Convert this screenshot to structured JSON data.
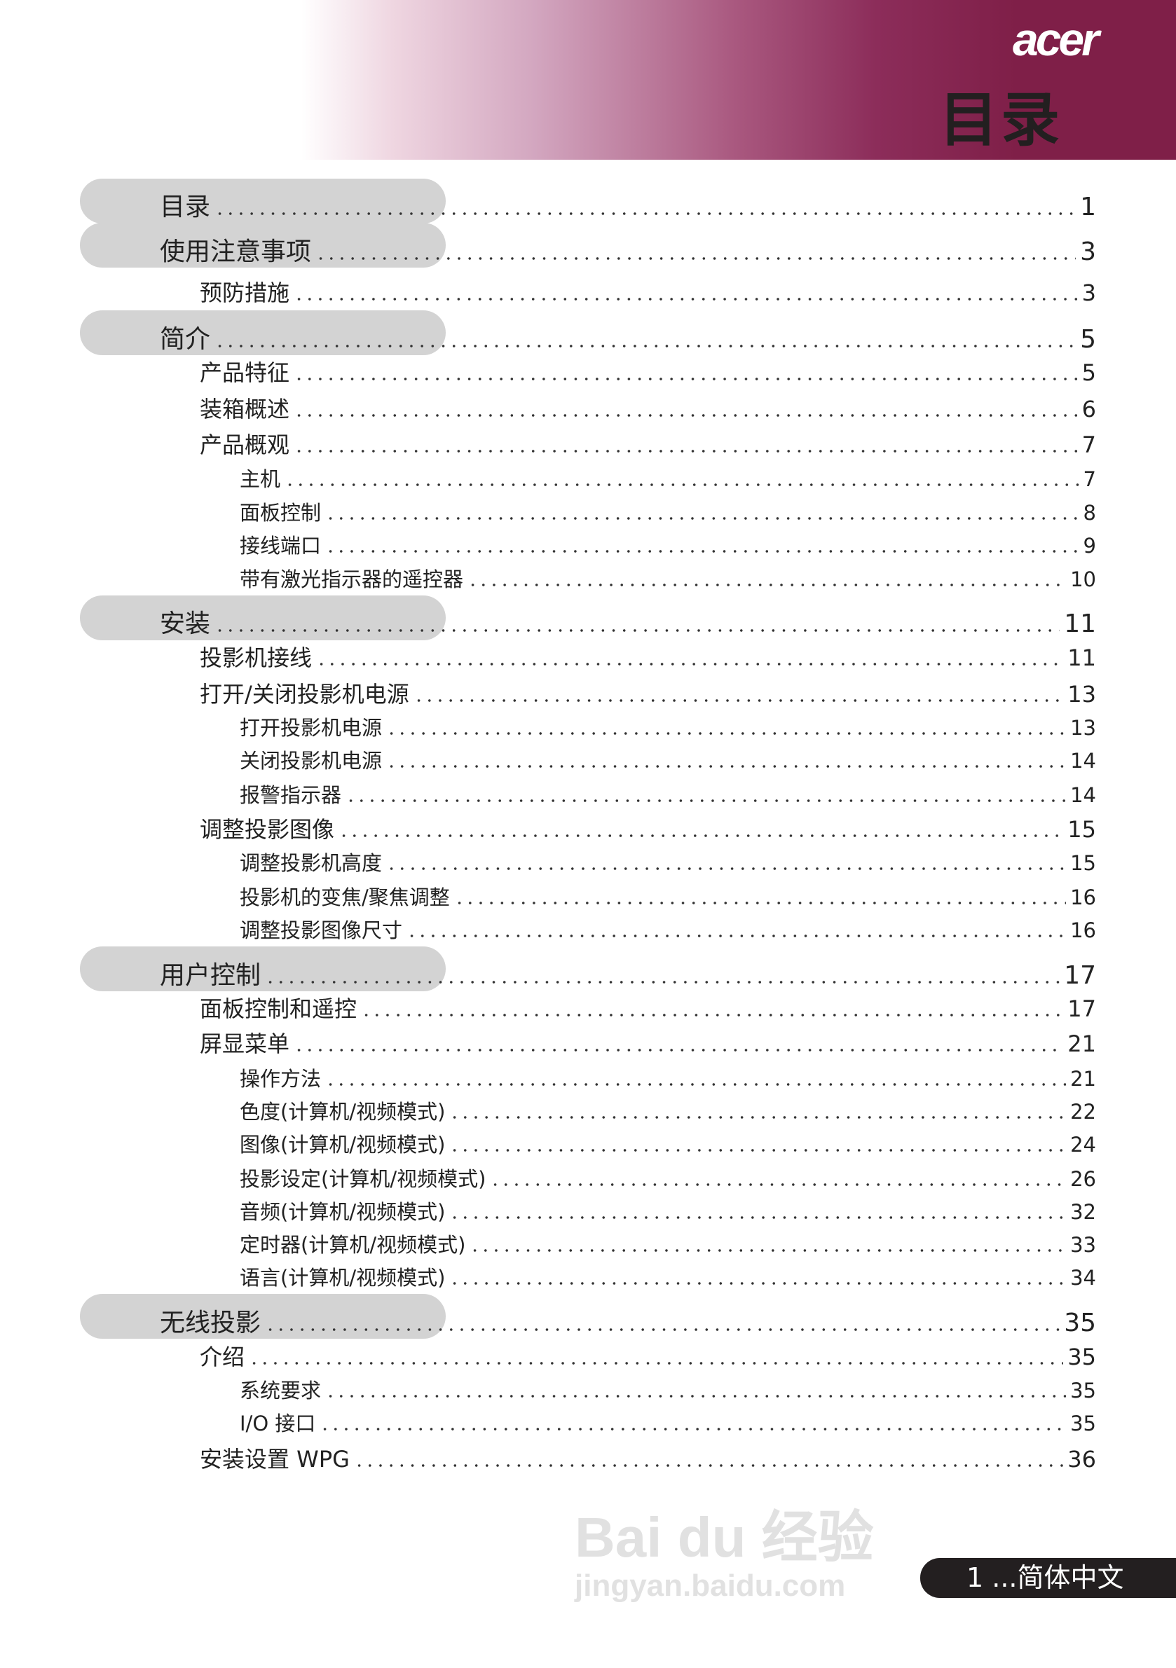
{
  "header": {
    "logo": "acer",
    "title": "目录",
    "gradient_color": "#7f1f48"
  },
  "toc": [
    {
      "level": 1,
      "label": "目录",
      "page": "1"
    },
    {
      "level": 1,
      "label": "使用注意事项",
      "page": "3"
    },
    {
      "level": 2,
      "label": "预防措施",
      "page": "3"
    },
    {
      "level": 1,
      "label": "简介",
      "page": "5"
    },
    {
      "level": 2,
      "label": "产品特征",
      "page": "5"
    },
    {
      "level": 2,
      "label": "装箱概述",
      "page": "6"
    },
    {
      "level": 2,
      "label": "产品概观",
      "page": "7"
    },
    {
      "level": 3,
      "label": "主机",
      "page": "7"
    },
    {
      "level": 3,
      "label": "面板控制",
      "page": "8"
    },
    {
      "level": 3,
      "label": "接线端口",
      "page": "9"
    },
    {
      "level": 3,
      "label": "带有激光指示器的遥控器",
      "page": "10"
    },
    {
      "level": 1,
      "label": "安装",
      "page": "11"
    },
    {
      "level": 2,
      "label": "投影机接线",
      "page": "11"
    },
    {
      "level": 2,
      "label": "打开/关闭投影机电源",
      "page": "13"
    },
    {
      "level": 3,
      "label": "打开投影机电源",
      "page": "13"
    },
    {
      "level": 3,
      "label": "关闭投影机电源",
      "page": "14"
    },
    {
      "level": 3,
      "label": "报警指示器",
      "page": "14"
    },
    {
      "level": 2,
      "label": "调整投影图像",
      "page": "15"
    },
    {
      "level": 3,
      "label": "调整投影机高度",
      "page": "15"
    },
    {
      "level": 3,
      "label": "投影机的变焦/聚焦调整",
      "page": "16"
    },
    {
      "level": 3,
      "label": "调整投影图像尺寸",
      "page": "16"
    },
    {
      "level": 1,
      "label": "用户控制",
      "page": "17"
    },
    {
      "level": 2,
      "label": "面板控制和遥控",
      "page": "17"
    },
    {
      "level": 2,
      "label": "屏显菜单",
      "page": "21"
    },
    {
      "level": 3,
      "label": "操作方法",
      "page": "21"
    },
    {
      "level": 3,
      "label": "色度(计算机/视频模式)",
      "page": "22"
    },
    {
      "level": 3,
      "label": "图像(计算机/视频模式)",
      "page": "24"
    },
    {
      "level": 3,
      "label": "投影设定(计算机/视频模式)",
      "page": "26"
    },
    {
      "level": 3,
      "label": "音频(计算机/视频模式)",
      "page": "32"
    },
    {
      "level": 3,
      "label": "定时器(计算机/视频模式)",
      "page": "33"
    },
    {
      "level": 3,
      "label": "语言(计算机/视频模式)",
      "page": "34"
    },
    {
      "level": 1,
      "label": "无线投影",
      "page": "35"
    },
    {
      "level": 2,
      "label": "介绍",
      "page": "35"
    },
    {
      "level": 3,
      "label": "系统要求",
      "page": "35"
    },
    {
      "level": 3,
      "label": "I/O 接口",
      "page": "35"
    },
    {
      "level": 2,
      "label": "安装设置 WPG",
      "page": "36"
    }
  ],
  "footer": {
    "page_label": "1 ...简体中文"
  },
  "watermark": {
    "line1": "Bai du 经验",
    "line2": "jingyan.baidu.com"
  }
}
